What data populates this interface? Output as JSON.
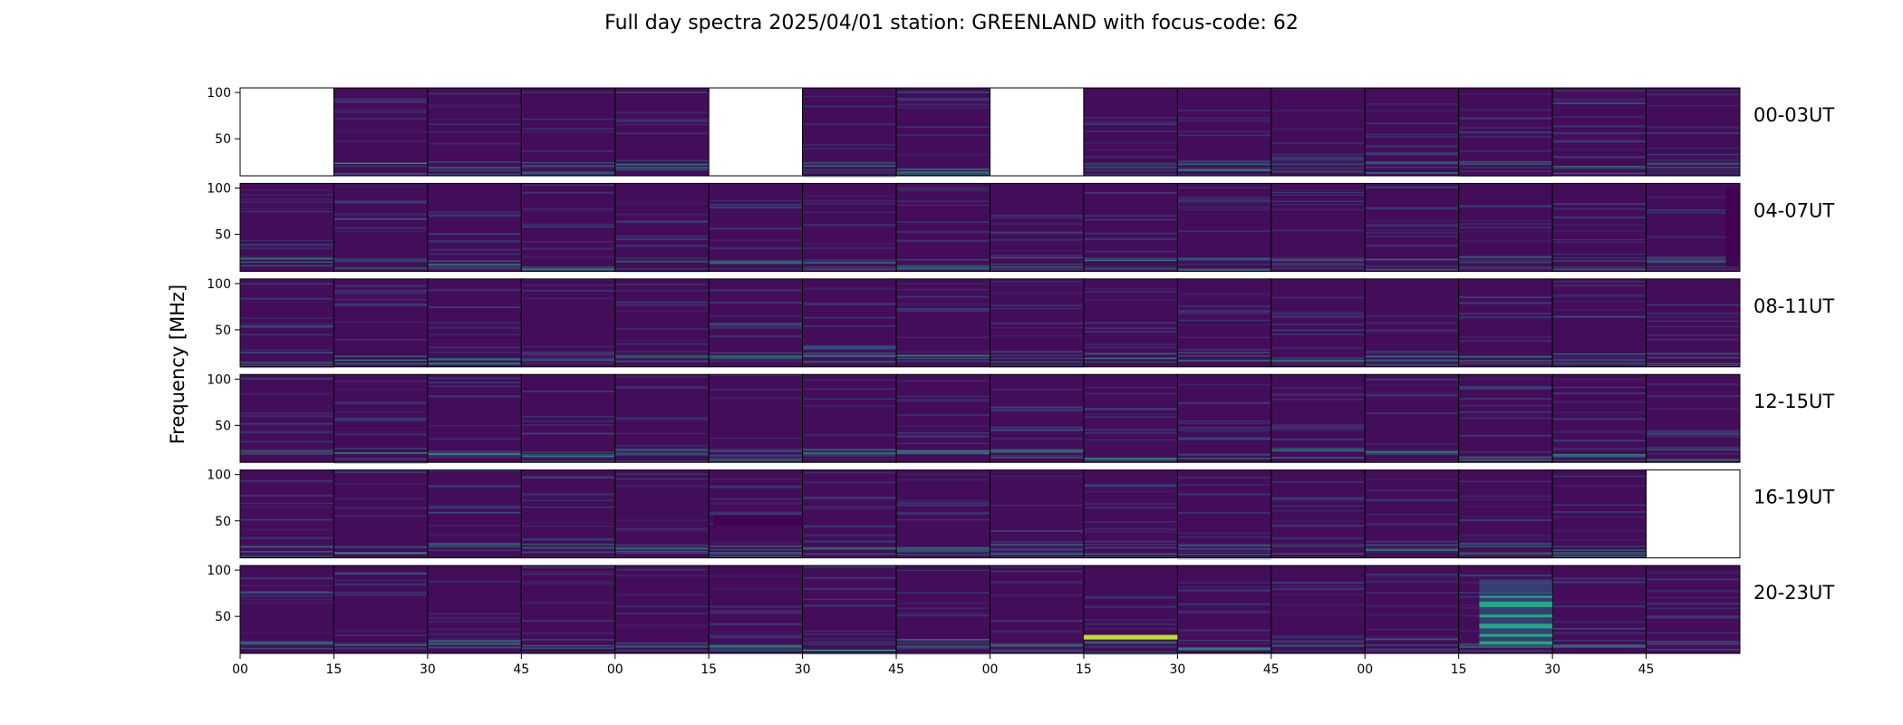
{
  "title": "Full day spectra 2025/04/01 station: GREENLAND with focus-code: 62",
  "chart_data": {
    "type": "heatmap",
    "title": "Full day spectra 2025/04/01 station: GREENLAND with focus-code: 62",
    "ylabel": "Frequency [MHz]",
    "ylim": [
      10,
      105
    ],
    "y_ticks": [
      100,
      50
    ],
    "x_ticks": [
      "00",
      "15",
      "30",
      "45",
      "00",
      "15",
      "30",
      "45",
      "00",
      "15",
      "30",
      "45",
      "00",
      "15",
      "30",
      "45"
    ],
    "colormap": "viridis",
    "colors": {
      "background": "#440d5a",
      "low": "#440154",
      "mid": "#2a788e",
      "high": "#22a884",
      "peak": "#bddf26",
      "missing": "#ffffff"
    },
    "rows": [
      {
        "label": "00-03UT",
        "missing": [
          0,
          5,
          8
        ],
        "features": []
      },
      {
        "label": "04-07UT",
        "missing": [],
        "features": [
          {
            "panel": 15,
            "type": "dark-band",
            "f_min": 15,
            "f_max": 100,
            "t_start": 0.85,
            "t_end": 1.0
          }
        ]
      },
      {
        "label": "08-11UT",
        "missing": [],
        "features": []
      },
      {
        "label": "12-15UT",
        "missing": [],
        "features": []
      },
      {
        "label": "16-19UT",
        "missing": [
          15
        ],
        "features": [
          {
            "panel": 5,
            "type": "dark-band",
            "f_min": 45,
            "f_max": 56,
            "t_start": 0.05,
            "t_end": 1.0
          }
        ]
      },
      {
        "label": "20-23UT",
        "missing": [],
        "features": [
          {
            "panel": 9,
            "type": "bright-band",
            "f_min": 25,
            "f_max": 30,
            "t_start": 0.0,
            "t_end": 1.0
          },
          {
            "panel": 13,
            "type": "teal-bands",
            "f_min": 18,
            "f_max": 90,
            "t_start": 0.22,
            "t_end": 1.0
          }
        ]
      }
    ]
  }
}
